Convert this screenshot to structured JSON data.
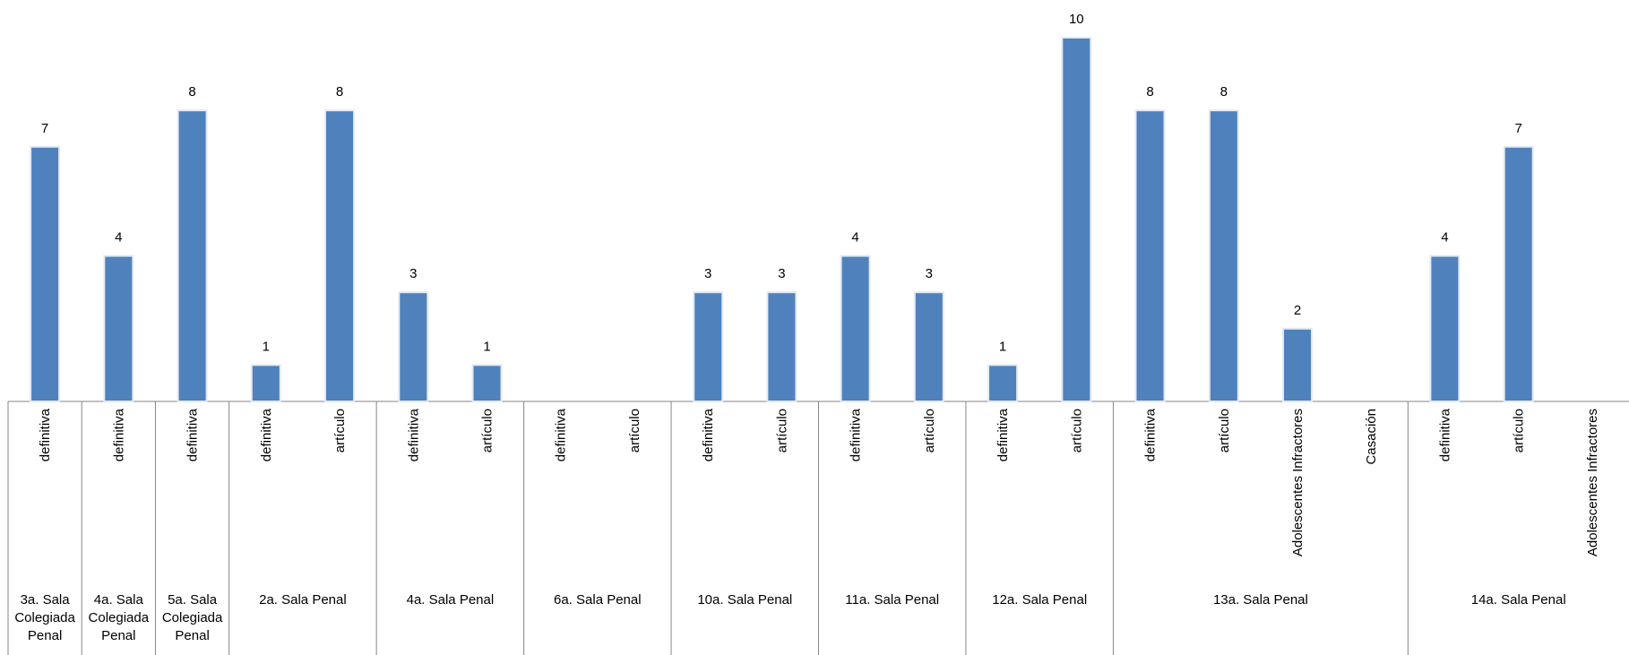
{
  "chart_data": {
    "type": "bar",
    "title": "",
    "xlabel": "",
    "ylabel": "",
    "ylim": [
      0,
      10
    ],
    "grid": false,
    "bar_color": "#4F81BD",
    "data_labels": true,
    "groups": [
      {
        "label": "3a. Sala Colegiada Penal",
        "categories": [
          {
            "label": "definitiva",
            "value": 7
          }
        ]
      },
      {
        "label": "4a. Sala Colegiada Penal",
        "categories": [
          {
            "label": "definitiva",
            "value": 4
          }
        ]
      },
      {
        "label": "5a. Sala Colegiada Penal",
        "categories": [
          {
            "label": "definitiva",
            "value": 8
          }
        ]
      },
      {
        "label": "2a. Sala Penal",
        "categories": [
          {
            "label": "definitiva",
            "value": 1
          },
          {
            "label": "artículo",
            "value": 8
          }
        ]
      },
      {
        "label": "4a. Sala Penal",
        "categories": [
          {
            "label": "definitiva",
            "value": 3
          },
          {
            "label": "artículo",
            "value": 1
          }
        ]
      },
      {
        "label": "6a. Sala Penal",
        "categories": [
          {
            "label": "definitiva",
            "value": null
          },
          {
            "label": "artículo",
            "value": null
          }
        ]
      },
      {
        "label": "10a. Sala Penal",
        "categories": [
          {
            "label": "definitiva",
            "value": 3
          },
          {
            "label": "artículo",
            "value": 3
          }
        ]
      },
      {
        "label": "11a. Sala Penal",
        "categories": [
          {
            "label": "definitiva",
            "value": 4
          },
          {
            "label": "artículo",
            "value": 3
          }
        ]
      },
      {
        "label": "12a. Sala Penal",
        "categories": [
          {
            "label": "definitiva",
            "value": 1
          },
          {
            "label": "artículo",
            "value": 10
          }
        ]
      },
      {
        "label": "13a. Sala Penal",
        "categories": [
          {
            "label": "definitiva",
            "value": 8
          },
          {
            "label": "artículo",
            "value": 8
          },
          {
            "label": "Adolescentes Infractores",
            "value": 2
          },
          {
            "label": "Casación",
            "value": null
          }
        ]
      },
      {
        "label": "14a. Sala Penal",
        "categories": [
          {
            "label": "definitiva",
            "value": 4
          },
          {
            "label": "artículo",
            "value": 7
          },
          {
            "label": "Adolescentes Infractores",
            "value": null
          }
        ]
      }
    ]
  }
}
